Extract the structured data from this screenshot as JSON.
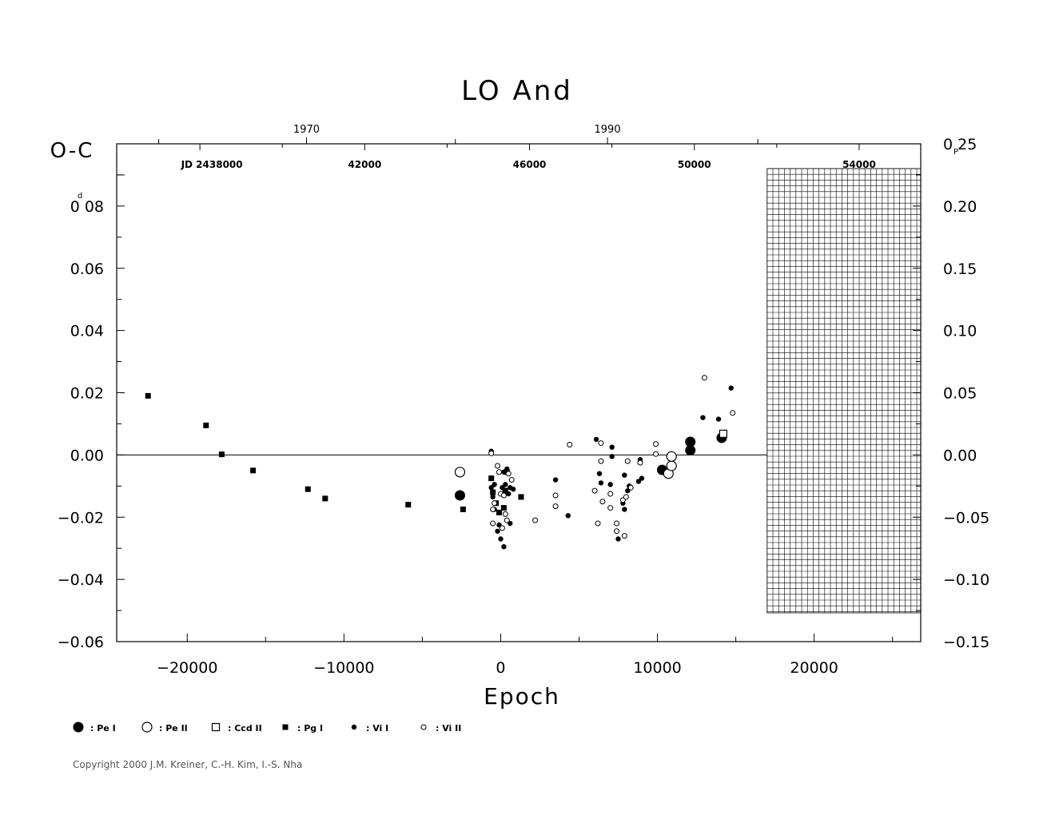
{
  "chart_data": {
    "type": "scatter",
    "title": "LO And",
    "xlabel": "Epoch",
    "ylabel": "O-C",
    "y_unit_mark": "d",
    "right_unit_mark": "P",
    "x_ticks": [
      "−20000",
      "−10000",
      "0",
      "10000",
      "20000"
    ],
    "y_ticks": [
      "−0.06",
      "−0.04",
      "−0.02",
      "0.00",
      "0.02",
      "0.04",
      "0.06",
      "0.08"
    ],
    "right_ticks": [
      "−0.15",
      "−0.10",
      "−0.05",
      "0.00",
      "0.05",
      "0.10",
      "0.15",
      "0.20",
      "0.25"
    ],
    "jd_labels": [
      "JD 2438000",
      "42000",
      "46000",
      "50000",
      "54000"
    ],
    "year_labels": [
      "1970",
      "1990"
    ],
    "xlim": [
      -24500,
      26800
    ],
    "ylim": [
      -0.06,
      0.1
    ],
    "right_ylim": [
      -0.15,
      0.25
    ],
    "jd_ticks_jd": [
      2438000,
      2442000,
      2446000,
      2450000,
      2454000
    ],
    "jd_epoch_ref": 2445300,
    "jd_period_days": 0.3804,
    "year_ticks_jd": [
      2440587,
      2447892
    ],
    "minor_jd_ticks": [
      2440000,
      2444000,
      2448000,
      2452000
    ],
    "future_region_start_epoch": 17000,
    "legend": [
      {
        "symbol": "pe1",
        "label": ": Pe I"
      },
      {
        "symbol": "pe2",
        "label": ": Pe II"
      },
      {
        "symbol": "ccd2",
        "label": ": Ccd II"
      },
      {
        "symbol": "pg1",
        "label": ": Pg I"
      },
      {
        "symbol": "vi1",
        "label": ": Vi I"
      },
      {
        "symbol": "vi2",
        "label": ": Vi II"
      }
    ],
    "series": [
      {
        "symbol": "pg1",
        "name": ": Pg I",
        "points": [
          [
            -22500,
            0.019
          ],
          [
            -18800,
            0.0095
          ],
          [
            -17800,
            0.0002
          ],
          [
            -15800,
            -0.005
          ],
          [
            -12300,
            -0.011
          ],
          [
            -11200,
            -0.014
          ],
          [
            -5900,
            -0.016
          ],
          [
            -2400,
            -0.0175
          ],
          [
            -600,
            -0.0075
          ],
          [
            -500,
            -0.012
          ],
          [
            -300,
            -0.0155
          ],
          [
            -100,
            -0.0185
          ],
          [
            200,
            -0.017
          ],
          [
            300,
            -0.0115
          ],
          [
            400,
            -0.0055
          ],
          [
            1300,
            -0.0135
          ]
        ]
      },
      {
        "symbol": "pe1",
        "name": ": Pe I",
        "points": [
          [
            -2600,
            -0.013
          ],
          [
            10300,
            -0.0048
          ],
          [
            12100,
            0.0042
          ],
          [
            12100,
            0.0015
          ],
          [
            14100,
            0.0055
          ]
        ]
      },
      {
        "symbol": "pe2",
        "name": ": Pe II",
        "points": [
          [
            -2600,
            -0.0055
          ],
          [
            10700,
            -0.006
          ],
          [
            10900,
            -0.0035
          ],
          [
            10900,
            -0.0005
          ]
        ]
      },
      {
        "symbol": "ccd2",
        "name": ": Ccd II",
        "points": [
          [
            14200,
            0.0068
          ]
        ]
      },
      {
        "symbol": "vi1",
        "name": ": Vi I",
        "points": [
          [
            -600,
            0.0012
          ],
          [
            -600,
            -0.0105
          ],
          [
            -500,
            -0.0135
          ],
          [
            -400,
            -0.0095
          ],
          [
            -400,
            -0.0175
          ],
          [
            -300,
            -0.0155
          ],
          [
            -200,
            -0.0245
          ],
          [
            -100,
            -0.0225
          ],
          [
            0,
            -0.027
          ],
          [
            100,
            -0.0105
          ],
          [
            200,
            -0.0295
          ],
          [
            200,
            -0.0055
          ],
          [
            300,
            -0.0095
          ],
          [
            400,
            -0.0045
          ],
          [
            500,
            -0.0125
          ],
          [
            600,
            -0.022
          ],
          [
            600,
            -0.0105
          ],
          [
            800,
            -0.011
          ],
          [
            3500,
            -0.008
          ],
          [
            4300,
            -0.0195
          ],
          [
            6100,
            0.005
          ],
          [
            6300,
            -0.006
          ],
          [
            6400,
            -0.009
          ],
          [
            7000,
            -0.0095
          ],
          [
            7100,
            0.0025
          ],
          [
            7100,
            -0.0005
          ],
          [
            7500,
            -0.027
          ],
          [
            7800,
            -0.0155
          ],
          [
            7900,
            -0.0065
          ],
          [
            7900,
            -0.0175
          ],
          [
            8200,
            -0.01
          ],
          [
            8100,
            -0.0115
          ],
          [
            8800,
            -0.0085
          ],
          [
            8900,
            -0.0015
          ],
          [
            9000,
            -0.0075
          ],
          [
            12900,
            0.012
          ],
          [
            13900,
            0.0115
          ],
          [
            14700,
            0.0215
          ]
        ]
      },
      {
        "symbol": "vi2",
        "name": ": Vi II",
        "points": [
          [
            -600,
            0.0005
          ],
          [
            -500,
            -0.0175
          ],
          [
            -500,
            -0.022
          ],
          [
            -400,
            -0.0155
          ],
          [
            -200,
            -0.0035
          ],
          [
            -100,
            -0.0055
          ],
          [
            0,
            -0.0125
          ],
          [
            100,
            -0.0235
          ],
          [
            200,
            -0.013
          ],
          [
            300,
            -0.019
          ],
          [
            400,
            -0.021
          ],
          [
            500,
            -0.006
          ],
          [
            700,
            -0.008
          ],
          [
            2200,
            -0.021
          ],
          [
            3500,
            -0.013
          ],
          [
            3500,
            -0.0165
          ],
          [
            4400,
            0.0033
          ],
          [
            6000,
            -0.0115
          ],
          [
            6200,
            -0.022
          ],
          [
            6400,
            -0.002
          ],
          [
            6400,
            0.0038
          ],
          [
            6500,
            -0.015
          ],
          [
            7000,
            -0.0125
          ],
          [
            7000,
            -0.017
          ],
          [
            7400,
            -0.022
          ],
          [
            7400,
            -0.0245
          ],
          [
            7800,
            -0.0145
          ],
          [
            7900,
            -0.026
          ],
          [
            8000,
            -0.0135
          ],
          [
            8100,
            -0.002
          ],
          [
            8300,
            -0.0105
          ],
          [
            8900,
            -0.0025
          ],
          [
            9900,
            0.0035
          ],
          [
            9900,
            0.0003
          ],
          [
            13000,
            0.0248
          ],
          [
            14800,
            0.0135
          ]
        ]
      }
    ]
  },
  "copyright": "Copyright 2000 J.M. Kreiner, C.-H. Kim, I.-S. Nha"
}
